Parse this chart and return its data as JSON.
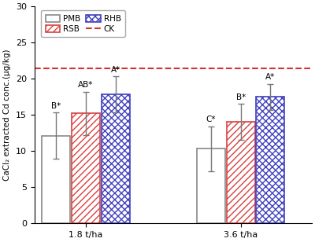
{
  "groups": [
    "1.8 t/ha",
    "3.6 t/ha"
  ],
  "series": [
    "PMB",
    "RSB",
    "RHB"
  ],
  "values": [
    [
      12.1,
      15.2,
      17.8
    ],
    [
      10.3,
      14.0,
      17.5
    ]
  ],
  "errors": [
    [
      3.2,
      3.0,
      2.5
    ],
    [
      3.1,
      2.5,
      1.8
    ]
  ],
  "labels": [
    [
      "B*",
      "AB*",
      "A*"
    ],
    [
      "C*",
      "B*",
      "A*"
    ]
  ],
  "ck_value": 21.4,
  "bar_edgecolors": [
    "#888888",
    "#d94040",
    "#4040c0"
  ],
  "hatch_patterns": [
    "",
    "////",
    "xxxx"
  ],
  "ylabel": "CaCl₂ extracted Cd conc.(µg/kg)",
  "ylim": [
    0,
    30
  ],
  "yticks": [
    0,
    5,
    10,
    15,
    20,
    25,
    30
  ],
  "ck_color": "#d93030",
  "bar_width": 0.22,
  "group_centers": [
    1.0,
    2.2
  ],
  "offsets": [
    -0.23,
    0.0,
    0.23
  ],
  "figsize": [
    4.0,
    3.08
  ],
  "dpi": 100
}
